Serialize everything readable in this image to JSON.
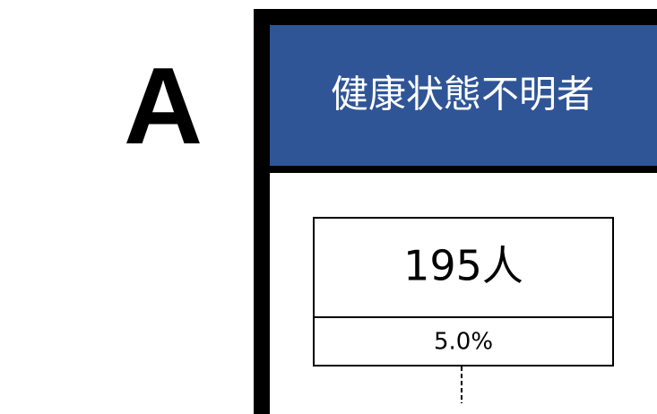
{
  "label": "A",
  "card": {
    "header": "健康状態不明者",
    "count": "195人",
    "percent": "5.0%"
  }
}
